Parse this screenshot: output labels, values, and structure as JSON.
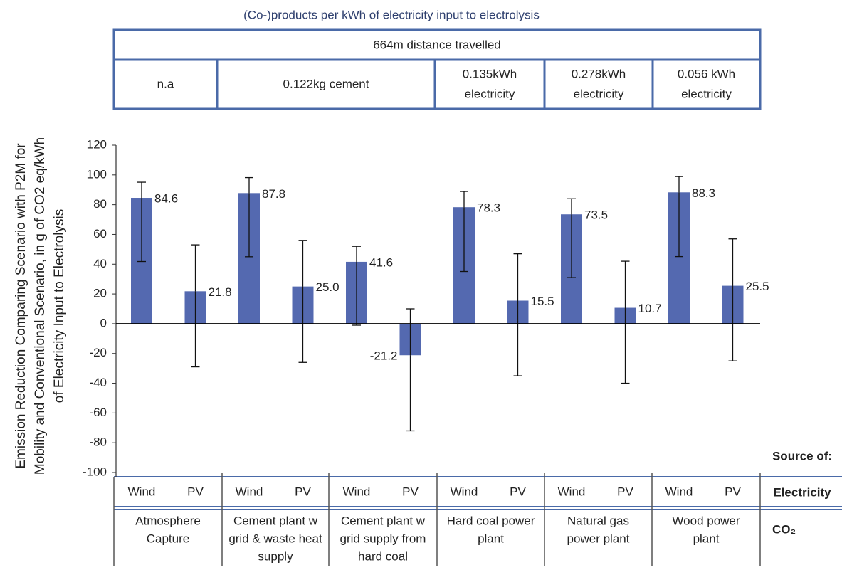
{
  "chart_data": {
    "type": "bar",
    "title": "(Co-)products per kWh of electricity input to electrolysis",
    "top_table": {
      "header": "664m distance travelled",
      "cells": [
        [
          "n.a"
        ],
        [
          "0.122kg cement"
        ],
        [
          "0.135kWh",
          "electricity"
        ],
        [
          "0.278kWh",
          "electricity"
        ],
        [
          "0.056 kWh",
          "electricity"
        ]
      ]
    },
    "y_label": [
      "Emission Reduction Comparing Scenario with P2M for",
      "Mobility and Conventional  Scenario, in g of CO2 eq/kWh",
      "of Electricity Input to Electrolysis"
    ],
    "categories": [
      "Wind",
      "PV",
      "Wind",
      "PV",
      "Wind",
      "PV",
      "Wind",
      "PV",
      "Wind",
      "PV",
      "Wind",
      "PV"
    ],
    "groups": [
      [
        "Atmosphere",
        "Capture"
      ],
      [
        "Cement plant w",
        "grid & waste heat",
        "supply"
      ],
      [
        "Cement plant w",
        "grid supply from",
        "hard coal"
      ],
      [
        "Hard coal power",
        "plant"
      ],
      [
        "Natural gas",
        "power plant"
      ],
      [
        "Wood power",
        "plant"
      ]
    ],
    "values": [
      84.6,
      21.8,
      87.8,
      25.0,
      41.6,
      -21.2,
      78.3,
      15.5,
      73.5,
      10.7,
      88.3,
      25.5
    ],
    "value_labels": [
      "84.6",
      "21.8",
      "87.8",
      "25.0",
      "41.6",
      "-21.2",
      "78.3",
      "15.5",
      "73.5",
      "10.7",
      "88.3",
      "25.5"
    ],
    "errors_plus": [
      10.5,
      31.2,
      10.4,
      31.0,
      10.4,
      31.2,
      10.6,
      31.5,
      10.5,
      31.3,
      10.6,
      31.5
    ],
    "errors_minus": [
      42.8,
      50.8,
      42.8,
      51.0,
      42.6,
      50.8,
      43.2,
      50.5,
      42.5,
      50.7,
      43.2,
      50.5
    ],
    "color": "#5469b0",
    "ylim": [
      -100,
      120
    ],
    "yticks": [
      -100,
      -80,
      -60,
      -40,
      -20,
      0,
      20,
      40,
      60,
      80,
      100,
      120
    ],
    "grid": false,
    "source_label": "Source of:",
    "row_labels": [
      "Electricity",
      "CO₂"
    ]
  }
}
